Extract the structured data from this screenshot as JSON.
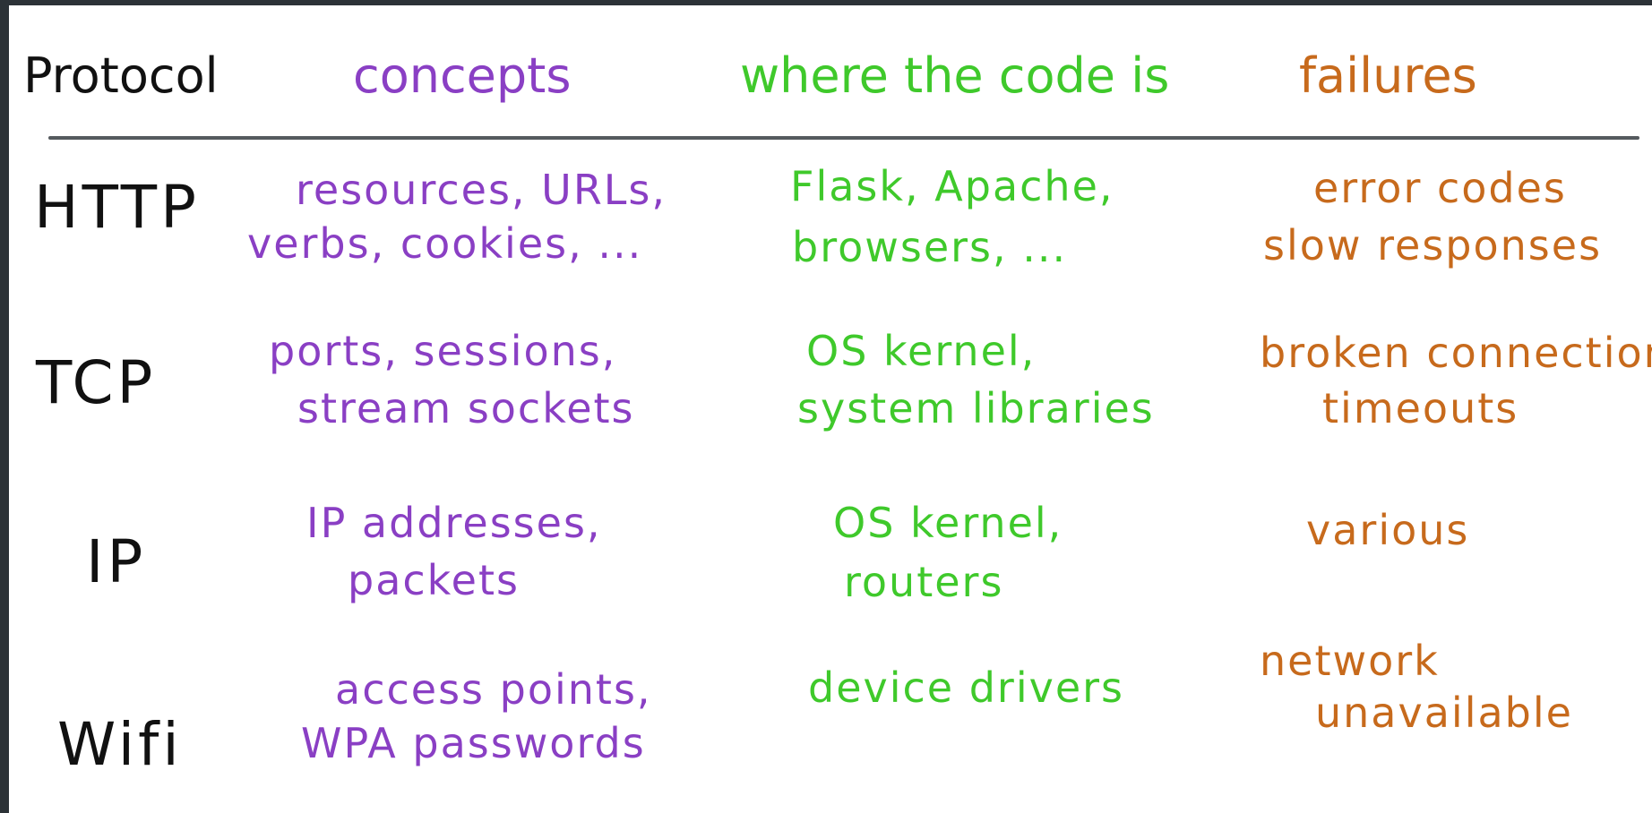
{
  "headers": {
    "protocol": "Protocol",
    "concepts": "concepts",
    "code": "where the code is",
    "failures": "failures"
  },
  "rows": [
    {
      "protocol": "HTTP",
      "concepts": [
        "resources, URLs,",
        "verbs, cookies, ..."
      ],
      "code": [
        "Flask, Apache,",
        "browsers, ..."
      ],
      "failures": [
        "error codes",
        "slow responses"
      ]
    },
    {
      "protocol": "TCP",
      "concepts": [
        "ports, sessions,",
        "stream sockets"
      ],
      "code": [
        "OS kernel,",
        "system libraries"
      ],
      "failures": [
        "broken connections",
        "timeouts"
      ]
    },
    {
      "protocol": "IP",
      "concepts": [
        "IP addresses,",
        "packets"
      ],
      "code": [
        "OS kernel,",
        "routers"
      ],
      "failures": [
        "various"
      ]
    },
    {
      "protocol": "Wifi",
      "concepts": [
        "access points,",
        "WPA passwords"
      ],
      "code": [
        "device drivers"
      ],
      "failures": [
        "network",
        "unavailable"
      ]
    }
  ],
  "colors": {
    "protocol": "#111111",
    "concepts": "#8a3fc4",
    "code": "#3fc92b",
    "failures": "#c76a1c",
    "rule": "#555a5e",
    "frame": "#2c3237"
  }
}
